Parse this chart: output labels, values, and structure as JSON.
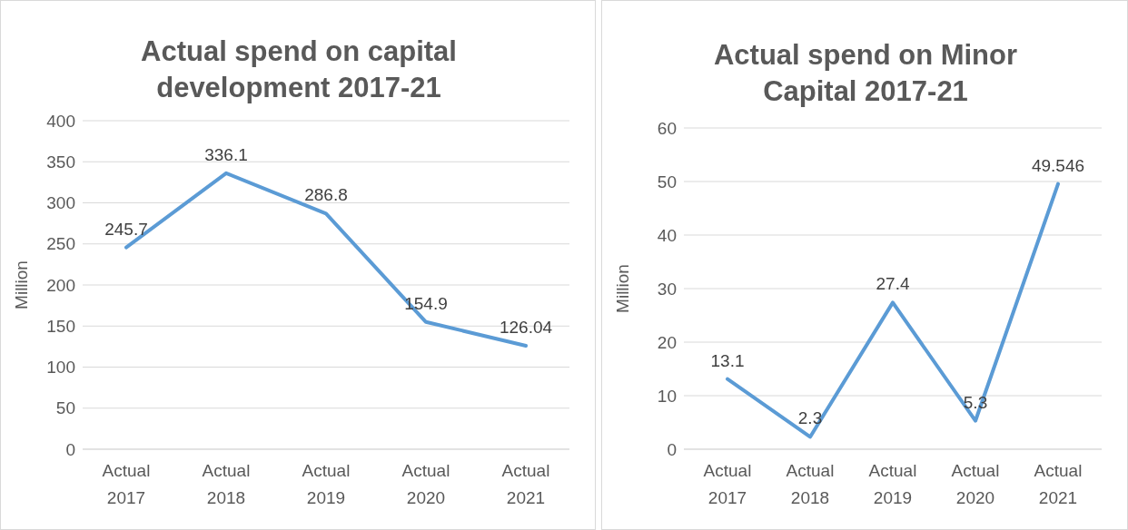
{
  "chart_data": [
    {
      "type": "line",
      "title": "Actual spend on capital development 2017-21",
      "ylabel": "Million",
      "categories": [
        "Actual 2017",
        "Actual 2018",
        "Actual 2019",
        "Actual 2020",
        "Actual 2021"
      ],
      "series": [
        {
          "color": "#5b9bd5",
          "values": [
            245.7,
            336.1,
            286.8,
            154.9,
            126.04
          ]
        }
      ],
      "ylim": [
        0,
        400
      ],
      "yticks": [
        0,
        50,
        100,
        150,
        200,
        250,
        300,
        350,
        400
      ],
      "grid": "y",
      "data_labels": true,
      "marker": "none",
      "line_style": "solid",
      "legend": false
    },
    {
      "type": "line",
      "title": "Actual spend on Minor Capital 2017-21",
      "ylabel": "Million",
      "categories": [
        "Actual 2017",
        "Actual 2018",
        "Actual 2019",
        "Actual 2020",
        "Actual 2021"
      ],
      "series": [
        {
          "color": "#5b9bd5",
          "values": [
            13.1,
            2.3,
            27.4,
            5.3,
            49.546
          ]
        }
      ],
      "ylim": [
        0,
        60
      ],
      "yticks": [
        0,
        10,
        20,
        30,
        40,
        50,
        60
      ],
      "grid": "y",
      "data_labels": true,
      "marker": "none",
      "line_style": "solid",
      "legend": false
    }
  ]
}
